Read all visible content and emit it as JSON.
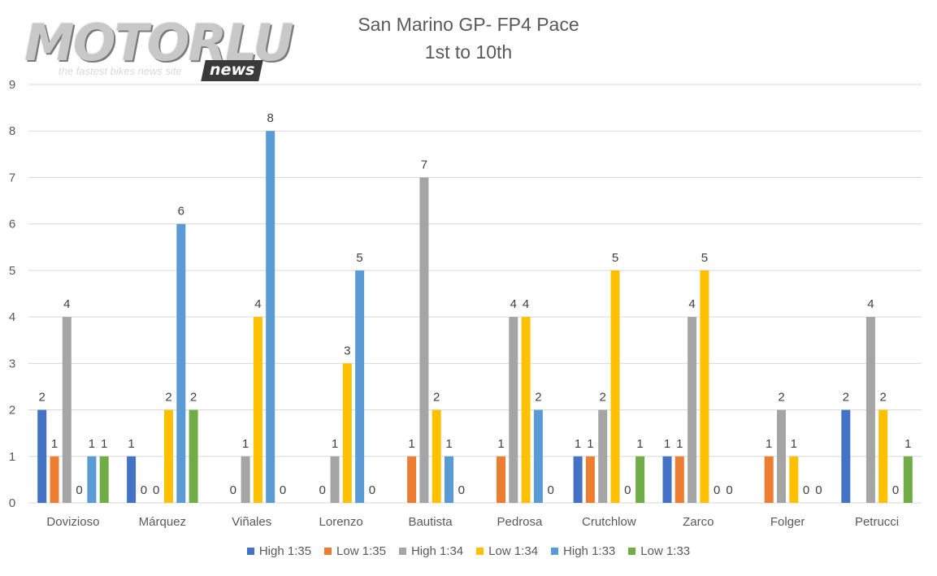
{
  "logo": {
    "main": "MOTORLU",
    "badge": "news",
    "tagline": "the fastest bikes news site"
  },
  "chart_data": {
    "type": "bar",
    "title": "San Marino GP- FP4 Pace",
    "subtitle": "1st to 10th",
    "xlabel": "",
    "ylabel": "",
    "ylim": [
      0,
      9
    ],
    "yticks": [
      0,
      1,
      2,
      3,
      4,
      5,
      6,
      7,
      8,
      9
    ],
    "grid": true,
    "legend_position": "bottom",
    "categories": [
      "Dovizioso",
      "Márquez",
      "Viñales",
      "Lorenzo",
      "Bautista",
      "Pedrosa",
      "Crutchlow",
      "Zarco",
      "Folger",
      "Petrucci"
    ],
    "series": [
      {
        "name": "High 1:35",
        "color": "#4472c4",
        "values": [
          2,
          1,
          null,
          null,
          null,
          null,
          1,
          1,
          null,
          2
        ],
        "labels": [
          "2",
          "1",
          "",
          "",
          "",
          "",
          "1",
          "1",
          "",
          "2"
        ]
      },
      {
        "name": "Low 1:35",
        "color": "#ed7d31",
        "values": [
          1,
          0,
          0,
          0,
          1,
          1,
          1,
          1,
          1,
          null
        ],
        "labels": [
          "1",
          "0",
          "0",
          "0",
          "1",
          "1",
          "1",
          "1",
          "1",
          ""
        ]
      },
      {
        "name": "High 1:34",
        "color": "#a5a5a5",
        "values": [
          4,
          0,
          1,
          1,
          7,
          4,
          2,
          4,
          2,
          4
        ],
        "labels": [
          "4",
          "0",
          "1",
          "1",
          "7",
          "4",
          "2",
          "4",
          "2",
          "4"
        ]
      },
      {
        "name": "Low 1:34",
        "color": "#ffc000",
        "values": [
          0,
          2,
          4,
          3,
          2,
          4,
          5,
          5,
          1,
          2
        ],
        "labels": [
          "0",
          "2",
          "4",
          "3",
          "2",
          "4",
          "5",
          "5",
          "1",
          "2"
        ]
      },
      {
        "name": "High 1:33",
        "color": "#5b9bd5",
        "values": [
          1,
          6,
          8,
          5,
          1,
          2,
          0,
          0,
          0,
          0
        ],
        "labels": [
          "1",
          "6",
          "8",
          "5",
          "1",
          "2",
          "0",
          "0",
          "0",
          "0"
        ]
      },
      {
        "name": "Low 1:33",
        "color": "#70ad47",
        "values": [
          1,
          2,
          0,
          0,
          0,
          0,
          1,
          0,
          0,
          1
        ],
        "labels": [
          "1",
          "2",
          "0",
          "0",
          "0",
          "0",
          "1",
          "0",
          "0",
          "1"
        ]
      }
    ],
    "colors": {
      "gridline": "#d9d9d9",
      "axis_text": "#595959",
      "label_text": "#404040"
    }
  }
}
